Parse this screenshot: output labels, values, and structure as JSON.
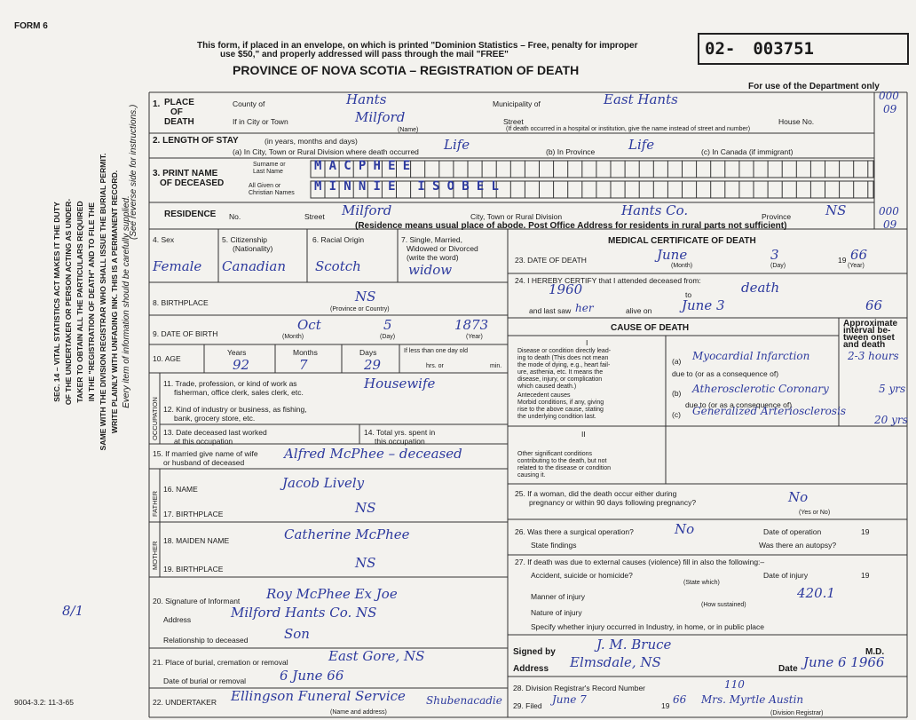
{
  "form_number": "FORM 6",
  "serial": {
    "prefix": "02-",
    "number": "003751"
  },
  "header": {
    "notice_lines": [
      "This form, if placed in an envelope, on which is printed \"Dominion Statistics – Free, penalty for improper",
      "use $50,\" and properly addressed will pass through the mail \"FREE\""
    ],
    "title": "PROVINCE OF NOVA SCOTIA – REGISTRATION OF DEATH",
    "department_note": "For use of the Department only",
    "department_codes": [
      "000",
      "09",
      "000",
      "09"
    ]
  },
  "side_instructions": {
    "lines": [
      "SEC. 14 – VITAL STATISTICS ACT MAKES IT THE DUTY",
      "OF THE UNDERTAKER OR PERSON ACTING AS UNDER-",
      "TAKER TO OBTAIN ALL THE PARTICULARS REQUIRED",
      "IN THE \"REGISTRATION OF DEATH\" AND TO FILE THE",
      "SAME WITH THE DIVISION REGISTRAR WHO SHALL ISSUE THE BURIAL PERMIT.",
      "WRITE PLAINLY WITH UNFADING INK. THIS IS A PERMANENT RECORD."
    ],
    "supply_note": "Every item of information should be carefully supplied.",
    "reverse_note": "(See reverse side for instructions.)"
  },
  "margin_note": "8/1",
  "footer_code": "9004-3.2: 11-3-65",
  "place_of_death": {
    "number": "1.",
    "label_lines": [
      "PLACE",
      "OF",
      "DEATH"
    ],
    "county_label": "County of",
    "county": "Hants",
    "municipality_label": "Municipality of",
    "municipality": "East Hants",
    "city_label": "If in City or Town",
    "city": "Milford",
    "name_note": "(Name)",
    "street_label": "Street",
    "house_label": "House No.",
    "hospital_note": "(If death occurred in a hospital or institution, give the name instead of street and number)"
  },
  "length_of_stay": {
    "label": "2. LENGTH OF STAY",
    "units_note": "(in years, months and days)",
    "division_label": "(a) In City, Town or Rural Division where death occurred",
    "division": "Life",
    "province_label": "(b) In Province",
    "province": "Life",
    "canada_label": "(c) In Canada (if immigrant)"
  },
  "deceased_name": {
    "label_lines": [
      "3. PRINT NAME",
      "OF DECEASED"
    ],
    "surname_label_lines": [
      "Surname or",
      "Last Name"
    ],
    "given_label_lines": [
      "All Given or",
      "Christian Names"
    ],
    "surname": "MACPHEE",
    "given": "MINNIE ISOBEL"
  },
  "residence": {
    "label": "RESIDENCE",
    "no_label": "No.",
    "street_label": "Street",
    "street": "Milford",
    "division_label": "City, Town or Rural Division",
    "division": "Hants Co.",
    "province_label": "Province",
    "province": "NS",
    "note": "(Residence means usual place of abode. Post Office Address for residents in rural parts not sufficient)"
  },
  "personal": {
    "sex_label": "4. Sex",
    "sex": "Female",
    "citizenship_label_lines": [
      "5. Citizenship",
      "(Nationality)"
    ],
    "citizenship": "Canadian",
    "racial_label": "6. Racial Origin",
    "racial": "Scotch",
    "marital_label_lines": [
      "7. Single, Married,",
      "Widowed or Divorced",
      "(write the word)"
    ],
    "marital": "widow",
    "birthplace_label": "8. BIRTHPLACE",
    "birthplace": "NS",
    "birthplace_note": "(Province or Country)",
    "dob_label": "9. DATE OF BIRTH",
    "dob_month": "Oct",
    "dob_day": "5",
    "dob_year": "1873",
    "month_note": "(Month)",
    "day_note": "(Day)",
    "year_note": "(Year)",
    "age_label": "10. AGE",
    "years_label": "Years",
    "months_label": "Months",
    "days_label": "Days",
    "less_label": "If less than one day old",
    "hrs_label": "hrs. or",
    "min_label": "min.",
    "age_years": "92",
    "age_months": "7",
    "age_days": "29"
  },
  "occupation": {
    "side_label": "OCCUPATION",
    "trade_label_lines": [
      "11. Trade, profession, or kind of work as",
      "fisherman, office clerk, sales clerk, etc."
    ],
    "trade": "Housewife",
    "industry_label_lines": [
      "12. Kind of industry or business, as fishing,",
      "bank, grocery store, etc."
    ],
    "last_worked_label_lines": [
      "13. Date deceased last worked",
      "at this occupation"
    ],
    "total_years_label_lines": [
      "14. Total yrs. spent in",
      "this occupation"
    ]
  },
  "spouse": {
    "label_lines": [
      "15. If married give name of wife",
      "or husband of deceased"
    ],
    "name": "Alfred McPhee – deceased"
  },
  "father": {
    "side_label": "FATHER",
    "name_label": "16. NAME",
    "name": "Jacob Lively",
    "birthplace_label": "17. BIRTHPLACE",
    "birthplace": "NS"
  },
  "mother": {
    "side_label": "MOTHER",
    "maiden_label": "18. MAIDEN NAME",
    "maiden": "Catherine McPhee",
    "birthplace_label": "19. BIRTHPLACE",
    "birthplace": "NS"
  },
  "informant": {
    "signature_label": "20. Signature of Informant",
    "signature": "Roy McPhee Ex Joe",
    "address_label": "Address",
    "address": "Milford Hants Co. NS",
    "relationship_label": "Relationship to deceased",
    "relationship": "Son"
  },
  "burial": {
    "place_label": "21. Place of burial, cremation or removal",
    "place": "East Gore, NS",
    "date_label": "Date of burial or removal",
    "date": "6 June 66"
  },
  "undertaker": {
    "label": "22. UNDERTAKER",
    "name": "Ellingson Funeral Service",
    "note": "(Name and address)",
    "address": "Shubenacadie"
  },
  "medical": {
    "title": "MEDICAL CERTIFICATE OF DEATH",
    "death_date_label": "23. DATE OF DEATH",
    "death_month": "June",
    "death_day": "3",
    "century": "19",
    "death_year": "66",
    "month_note": "(Month)",
    "day_note": "(Day)",
    "year_note": "(Year)",
    "certify_label": "24. I HEREBY CERTIFY that I attended deceased from:",
    "attended_from": "1960",
    "to_label": "to",
    "attended_to": "death",
    "last_saw_label": "and last saw",
    "last_saw_pronoun": "her",
    "alive_label": "alive on",
    "last_saw_date": "June 3",
    "last_saw_year": "66"
  },
  "cause": {
    "title": "CAUSE OF DEATH",
    "interval_label_lines": [
      "Approximate",
      "interval be-",
      "tween onset",
      "and death"
    ],
    "part_one": "I",
    "direct_label_lines": [
      "Disease or condition directly lead-",
      "ing to death (This does not mean",
      "the mode of dying, e.g., heart fail-",
      "ure, asthenia, etc. It means the",
      "disease, injury, or complication",
      "which caused death.)"
    ],
    "antecedent_label_lines": [
      "Antecedent causes",
      "Morbid conditions, if any, giving",
      "rise to the above cause, stating",
      "the underlying condition last."
    ],
    "due_to_label": "due to (or as a consequence of)",
    "a_label": "(a)",
    "a": "Myocardial Infarction",
    "a_interval": "2-3 hours",
    "b_label": "(b)",
    "b": "Atherosclerotic Coronary",
    "b_interval": "5 yrs",
    "c_label": "(c)",
    "c": "Generalized Arteriosclerosis",
    "c_interval": "20 yrs",
    "part_two": "II",
    "other_label_lines": [
      "Other significant conditions",
      "contributing to the death, but not",
      "related to the disease or condition",
      "causing it."
    ]
  },
  "pregnancy": {
    "label_lines": [
      "25. If a woman, did the death occur either during",
      "pregnancy or within 90 days following pregnancy?"
    ],
    "answer": "No",
    "note": "(Yes or No)"
  },
  "operation": {
    "label": "26. Was there a surgical operation?",
    "answer": "No",
    "date_label": "Date of operation",
    "century": "19",
    "findings_label": "State findings",
    "autopsy_label": "Was there an autopsy?"
  },
  "external": {
    "label": "27. If death was due to external causes (violence) fill in also the following:–",
    "kind_label": "Accident, suicide or homicide?",
    "kind_note": "(State which)",
    "date_label": "Date of injury",
    "century": "19",
    "code": "420.1",
    "manner_label": "Manner of injury",
    "manner_note": "(How sustained)",
    "nature_label": "Nature of injury",
    "place_label": "Specify whether injury occurred in Industry, in home, or in public place"
  },
  "signature": {
    "signed_label": "Signed by",
    "signed": "J. M. Bruce",
    "md_label": "M.D.",
    "address_label": "Address",
    "address": "Elmsdale, NS",
    "date_label": "Date",
    "date": "June 6 1966"
  },
  "registrar": {
    "record_label": "28. Division Registrar's Record Number",
    "record": "110",
    "filed_label": "29. Filed",
    "filed_date": "June 7",
    "century": "19",
    "filed_year": "66",
    "registrar": "Mrs. Myrtle Austin",
    "registrar_note": "(Division Registrar)"
  }
}
